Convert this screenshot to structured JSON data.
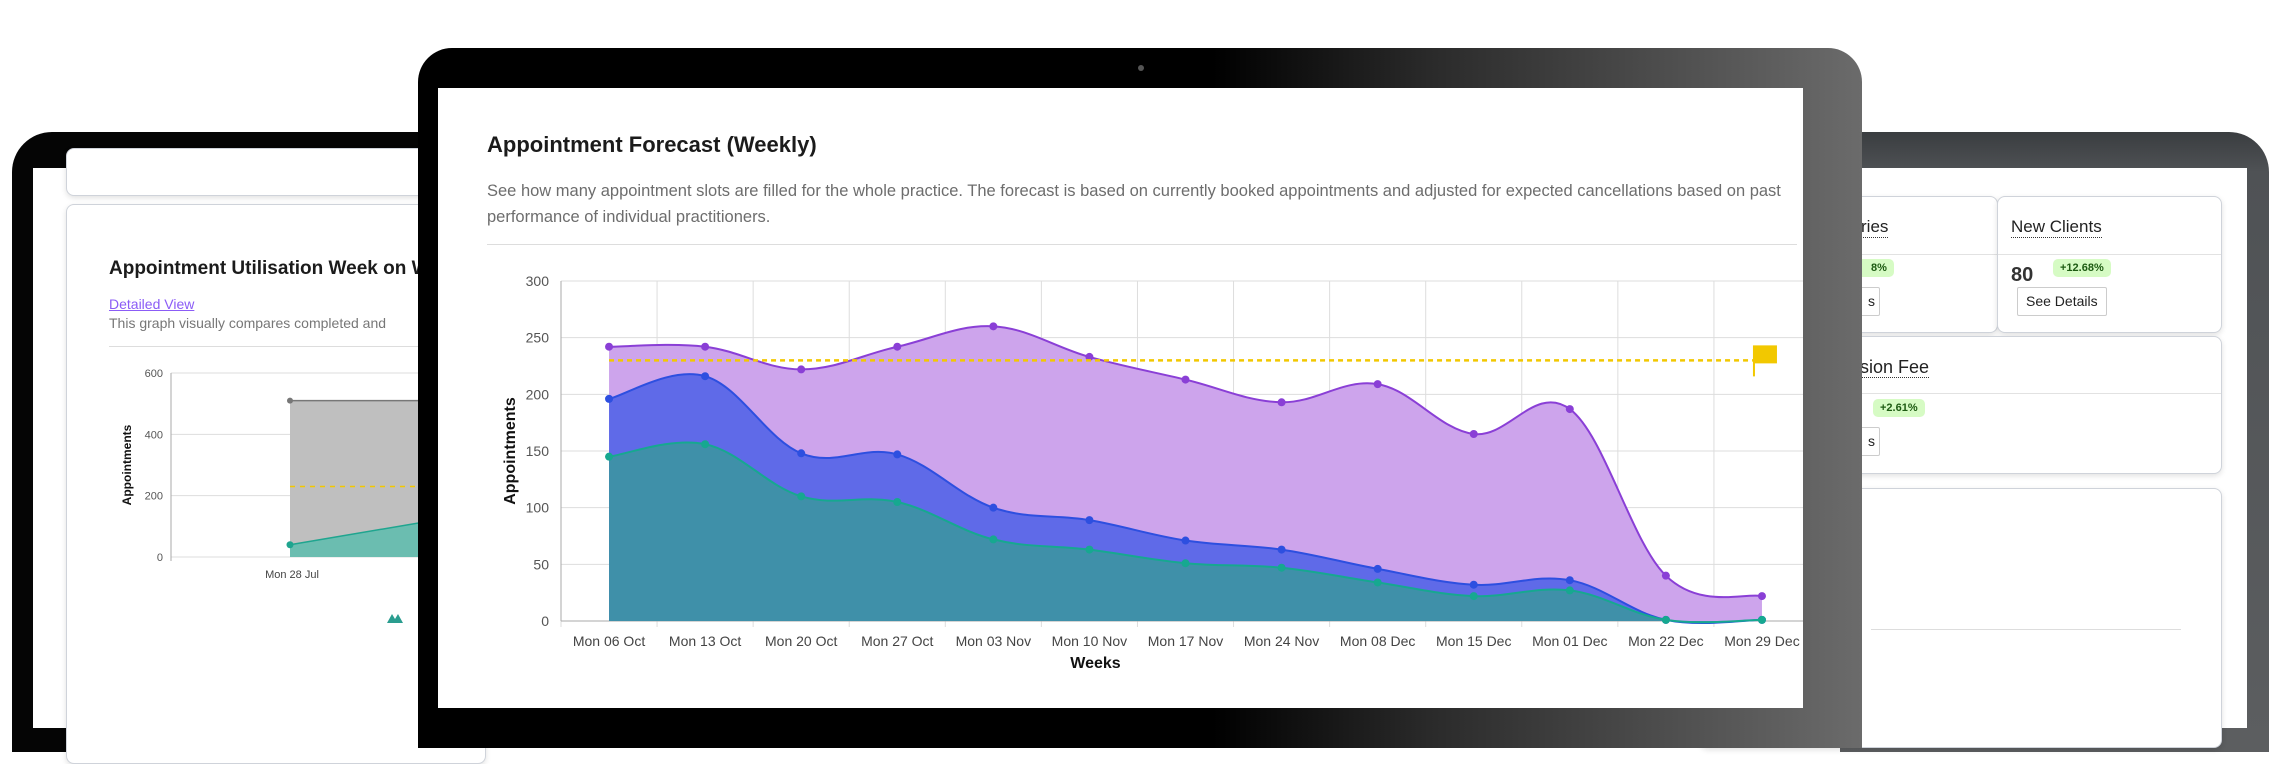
{
  "left_panel": {
    "title": "Appointment Utilisation Week on W",
    "link": "Detailed View",
    "description": "This graph visually compares completed and",
    "chart_data": {
      "type": "area",
      "ylabel": "Appointments",
      "ylim": [
        0,
        600
      ],
      "yticks": [
        0,
        200,
        400,
        600
      ],
      "categories": [
        "Mon 28 Jul"
      ],
      "series": [
        {
          "values": [
            510
          ],
          "color": "#bfbfbf",
          "line": "#777777"
        },
        {
          "values": [
            40
          ],
          "color": "#6bbdb0",
          "line": "#1fa58f"
        }
      ],
      "target": 230
    },
    "legend_icon": "mountain-icon"
  },
  "right_panel": {
    "kpis": [
      {
        "title": "ries",
        "badge": "8%",
        "button": "s"
      },
      {
        "title": "New Clients",
        "value": "80",
        "badge": "+12.68%",
        "button": "See Details"
      },
      {
        "title": "ession Fee",
        "badge": "+2.61%",
        "button": "s"
      }
    ]
  },
  "main": {
    "title": "Appointment Forecast (Weekly)",
    "description": "See how many appointment slots are filled for the whole practice. The forecast is based on currently booked appointments and adjusted for expected cancellations based on past performance of individual practitioners.",
    "chart_data": {
      "type": "area",
      "xlabel": "Weeks",
      "ylabel": "Appointments",
      "ylim": [
        0,
        300
      ],
      "yticks": [
        0,
        50,
        100,
        150,
        200,
        250,
        300
      ],
      "grid": true,
      "categories": [
        "Mon 06 Oct",
        "Mon 13 Oct",
        "Mon 20 Oct",
        "Mon 27 Oct",
        "Mon 03 Nov",
        "Mon 10 Nov",
        "Mon 17 Nov",
        "Mon 24 Nov",
        "Mon 08 Dec",
        "Mon 15 Dec",
        "Mon 01 Dec",
        "Mon 22 Dec",
        "Mon 29 Dec"
      ],
      "series": [
        {
          "values": [
            242,
            242,
            222,
            242,
            260,
            233,
            213,
            193,
            209,
            165,
            187,
            40,
            22
          ],
          "fill": "#cda4ec",
          "line": "#8a3fd6"
        },
        {
          "values": [
            196,
            216,
            148,
            147,
            100,
            89,
            71,
            63,
            46,
            32,
            36,
            1,
            1
          ],
          "fill": "#5f6ae8",
          "line": "#2d4fe0"
        },
        {
          "values": [
            145,
            156,
            110,
            105,
            72,
            63,
            51,
            47,
            34,
            22,
            27,
            1,
            1
          ],
          "fill": "#3f90a9",
          "line": "#16a890"
        }
      ],
      "target": 230,
      "target_color": "#f2c800",
      "target_icon": "flag-icon"
    }
  }
}
